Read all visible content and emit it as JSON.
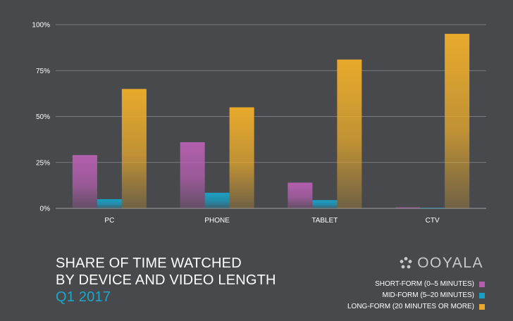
{
  "chart_data": {
    "type": "bar",
    "title": "SHARE OF TIME WATCHED BY DEVICE AND VIDEO LENGTH",
    "title_lines": [
      "SHARE OF TIME WATCHED",
      "BY DEVICE AND VIDEO LENGTH"
    ],
    "subtitle": "Q1 2017",
    "xlabel": "",
    "ylabel": "",
    "categories": [
      "PC",
      "PHONE",
      "TABLET",
      "CTV"
    ],
    "series": [
      {
        "name": "SHORT-FORM (0–5 MINUTES)",
        "color": "#b35fae",
        "values": [
          29,
          36,
          14,
          0.5
        ]
      },
      {
        "name": "MID-FORM (5–20 MINUTES)",
        "color": "#1a9fc4",
        "values": [
          5,
          8.5,
          4.5,
          0.3
        ]
      },
      {
        "name": "LONG-FORM (20 MINUTES OR MORE)",
        "color": "#e8aa2c",
        "values": [
          65,
          55,
          81,
          95
        ]
      }
    ],
    "ylim": [
      0,
      100
    ],
    "yticks": [
      {
        "value": 100,
        "label": "100%"
      },
      {
        "value": 75,
        "label": "75%"
      },
      {
        "value": 50,
        "label": "50%"
      },
      {
        "value": 25,
        "label": "25%"
      },
      {
        "value": 0,
        "label": "0%"
      }
    ],
    "grid": true,
    "legend_position": "bottom-right"
  },
  "branding": {
    "logo_text": "OOYALA",
    "logo_icon": "ooyala-logo-icon"
  },
  "colors": {
    "background": "#48494d",
    "gridline": "#8a8b8f",
    "axis_text": "#ffffff",
    "subtitle": "#1ea7c8"
  }
}
